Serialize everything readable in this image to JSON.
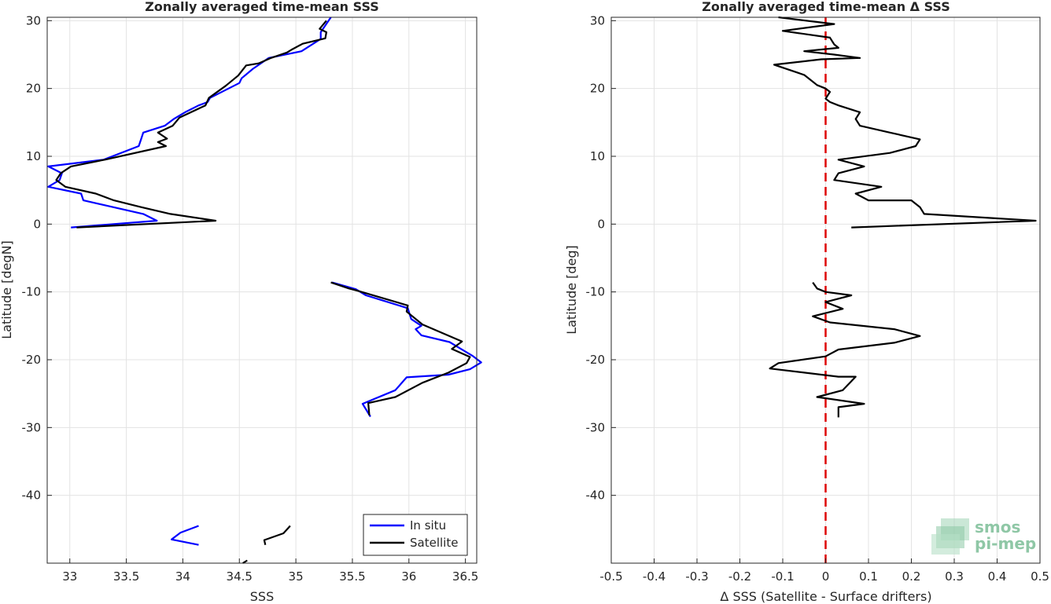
{
  "chart_data": [
    {
      "type": "line",
      "title": "Zonally averaged time-mean SSS",
      "xlabel": "SSS",
      "ylabel": "Latitude [degN]",
      "xlim": [
        32.8,
        36.6
      ],
      "ylim": [
        -50,
        30.5
      ],
      "xticks": [
        33,
        33.5,
        34,
        34.5,
        35,
        35.5,
        36,
        36.5
      ],
      "xtick_labels": [
        "33",
        "33.5",
        "34",
        "34.5",
        "35",
        "35.5",
        "36",
        "36.5"
      ],
      "yticks": [
        -40,
        -30,
        -20,
        -10,
        0,
        10,
        20,
        30
      ],
      "ytick_labels": [
        "-40",
        "-30",
        "-20",
        "-10",
        "0",
        "10",
        "20",
        "30"
      ],
      "grid": true,
      "legend": {
        "position": "bottom-right",
        "entries": [
          "In situ",
          "Satellite"
        ]
      },
      "series": [
        {
          "name": "In situ",
          "color": "#0000ff",
          "segments": [
            [
              [
                35.31,
                30.5
              ],
              [
                35.22,
                28.3
              ],
              [
                35.22,
                27.3
              ],
              [
                35.05,
                25.5
              ],
              [
                34.76,
                24.5
              ],
              [
                34.62,
                22.9
              ],
              [
                34.52,
                21.5
              ],
              [
                34.5,
                20.8
              ],
              [
                34.24,
                18.6
              ],
              [
                34.22,
                18.0
              ],
              [
                34.14,
                17.5
              ],
              [
                34.02,
                16.5
              ],
              [
                33.92,
                15.5
              ],
              [
                33.84,
                14.5
              ],
              [
                33.65,
                13.5
              ],
              [
                33.63,
                12.5
              ],
              [
                33.61,
                11.5
              ],
              [
                33.3,
                9.5
              ],
              [
                32.81,
                8.5
              ],
              [
                32.93,
                7.5
              ],
              [
                32.91,
                6.5
              ],
              [
                32.81,
                5.5
              ],
              [
                33.1,
                4.5
              ],
              [
                33.12,
                3.5
              ],
              [
                33.65,
                1.5
              ],
              [
                33.77,
                0.5
              ],
              [
                33.01,
                -0.5
              ]
            ],
            [
              [
                35.32,
                -8.6
              ],
              [
                35.53,
                -9.6
              ],
              [
                35.62,
                -10.5
              ],
              [
                35.99,
                -12.4
              ],
              [
                36.02,
                -14.0
              ],
              [
                36.11,
                -15.0
              ],
              [
                36.06,
                -15.5
              ],
              [
                36.11,
                -16.4
              ],
              [
                36.36,
                -17.4
              ],
              [
                36.45,
                -18.3
              ],
              [
                36.56,
                -19.4
              ],
              [
                36.64,
                -20.4
              ],
              [
                36.54,
                -21.4
              ],
              [
                36.35,
                -22.2
              ],
              [
                35.98,
                -22.6
              ],
              [
                35.88,
                -24.5
              ],
              [
                35.59,
                -26.5
              ],
              [
                35.66,
                -28.4
              ]
            ],
            [
              [
                34.14,
                -44.5
              ],
              [
                33.98,
                -45.5
              ],
              [
                33.9,
                -46.5
              ],
              [
                34.14,
                -47.3
              ]
            ]
          ]
        },
        {
          "name": "Satellite",
          "color": "#000000",
          "segments": [
            [
              [
                35.27,
                30.0
              ],
              [
                35.21,
                28.8
              ],
              [
                35.27,
                28.3
              ],
              [
                35.26,
                27.4
              ],
              [
                35.06,
                26.6
              ],
              [
                34.96,
                25.7
              ],
              [
                34.92,
                25.3
              ],
              [
                34.78,
                24.5
              ],
              [
                34.67,
                23.7
              ],
              [
                34.56,
                23.4
              ],
              [
                34.49,
                21.9
              ],
              [
                34.38,
                20.4
              ],
              [
                34.23,
                18.6
              ],
              [
                34.2,
                17.5
              ],
              [
                33.97,
                15.7
              ],
              [
                33.91,
                14.5
              ],
              [
                33.78,
                13.5
              ],
              [
                33.86,
                12.6
              ],
              [
                33.78,
                12.1
              ],
              [
                33.85,
                11.5
              ],
              [
                33.31,
                9.5
              ],
              [
                33.01,
                8.5
              ],
              [
                32.92,
                7.5
              ],
              [
                32.88,
                6.5
              ],
              [
                32.96,
                5.5
              ],
              [
                33.23,
                4.5
              ],
              [
                33.39,
                3.5
              ],
              [
                33.63,
                2.5
              ],
              [
                33.89,
                1.5
              ],
              [
                34.29,
                0.5
              ],
              [
                33.06,
                -0.5
              ]
            ],
            [
              [
                35.31,
                -8.6
              ],
              [
                35.47,
                -9.5
              ],
              [
                35.54,
                -9.8
              ],
              [
                35.99,
                -12.0
              ],
              [
                35.98,
                -12.9
              ],
              [
                36.12,
                -14.8
              ],
              [
                36.47,
                -17.3
              ],
              [
                36.38,
                -18.4
              ],
              [
                36.54,
                -19.6
              ],
              [
                36.51,
                -20.5
              ],
              [
                36.35,
                -21.9
              ],
              [
                36.12,
                -23.4
              ],
              [
                35.88,
                -25.5
              ],
              [
                35.64,
                -26.4
              ],
              [
                35.65,
                -28.2
              ]
            ],
            [
              [
                34.95,
                -44.5
              ],
              [
                34.89,
                -45.6
              ],
              [
                34.72,
                -46.6
              ],
              [
                34.73,
                -47.3
              ]
            ],
            [
              [
                34.57,
                -49.6
              ],
              [
                34.53,
                -50.0
              ]
            ]
          ]
        }
      ]
    },
    {
      "type": "line",
      "title": "Zonally averaged time-mean Δ SSS",
      "xlabel": "Δ SSS (Satellite - Surface drifters)",
      "ylabel": "Latitude [deg]",
      "xlim": [
        -0.5,
        0.5
      ],
      "ylim": [
        -50,
        30.5
      ],
      "xticks": [
        -0.5,
        -0.4,
        -0.3,
        -0.2,
        -0.1,
        0,
        0.1,
        0.2,
        0.3,
        0.4,
        0.5
      ],
      "xtick_labels": [
        "-0.5",
        "-0.4",
        "-0.3",
        "-0.2",
        "-0.1",
        "0",
        "0.1",
        "0.2",
        "0.3",
        "0.4",
        "0.5"
      ],
      "yticks": [
        -40,
        -30,
        -20,
        -10,
        0,
        10,
        20,
        30
      ],
      "ytick_labels": [
        "-40",
        "-30",
        "-20",
        "-10",
        "0",
        "10",
        "20",
        "30"
      ],
      "grid": true,
      "reference_line": {
        "x": 0,
        "color": "#dd0000",
        "style": "dashed"
      },
      "series": [
        {
          "color": "#000000",
          "segments": [
            [
              [
                -0.11,
                30.5
              ],
              [
                0.02,
                29.5
              ],
              [
                -0.1,
                28.5
              ],
              [
                0.01,
                27.5
              ],
              [
                0.02,
                26.5
              ],
              [
                0.03,
                26.0
              ],
              [
                -0.05,
                25.5
              ],
              [
                0.02,
                25.0
              ],
              [
                0.08,
                24.5
              ],
              [
                -0.01,
                24.3
              ],
              [
                -0.12,
                23.5
              ],
              [
                -0.05,
                22.0
              ],
              [
                -0.03,
                21.0
              ],
              [
                -0.02,
                20.5
              ],
              [
                0.0,
                20.0
              ],
              [
                0.01,
                19.5
              ],
              [
                0.0,
                18.5
              ],
              [
                0.01,
                18.0
              ],
              [
                0.03,
                17.5
              ],
              [
                0.08,
                16.5
              ],
              [
                0.07,
                15.5
              ],
              [
                0.08,
                14.5
              ],
              [
                0.15,
                13.5
              ],
              [
                0.22,
                12.5
              ],
              [
                0.21,
                11.5
              ],
              [
                0.15,
                10.5
              ],
              [
                0.03,
                9.5
              ],
              [
                0.09,
                8.5
              ],
              [
                0.03,
                7.5
              ],
              [
                0.02,
                6.5
              ],
              [
                0.13,
                5.5
              ],
              [
                0.07,
                4.5
              ],
              [
                0.1,
                3.5
              ],
              [
                0.2,
                3.5
              ],
              [
                0.22,
                2.5
              ],
              [
                0.23,
                1.5
              ],
              [
                0.49,
                0.5
              ],
              [
                0.06,
                -0.5
              ]
            ],
            [
              [
                -0.03,
                -8.6
              ],
              [
                -0.02,
                -9.5
              ],
              [
                0.0,
                -10.0
              ],
              [
                0.06,
                -10.5
              ],
              [
                0.0,
                -11.5
              ],
              [
                0.04,
                -12.5
              ],
              [
                -0.03,
                -13.6
              ],
              [
                0.01,
                -14.5
              ],
              [
                0.16,
                -15.5
              ],
              [
                0.22,
                -16.5
              ],
              [
                0.16,
                -17.5
              ],
              [
                0.03,
                -18.5
              ],
              [
                0.0,
                -19.5
              ],
              [
                -0.11,
                -20.5
              ],
              [
                -0.13,
                -21.3
              ],
              [
                0.03,
                -22.5
              ],
              [
                0.07,
                -22.5
              ],
              [
                0.04,
                -24.5
              ],
              [
                -0.02,
                -25.5
              ],
              [
                0.09,
                -26.5
              ],
              [
                0.03,
                -27.0
              ],
              [
                0.03,
                -28.5
              ]
            ]
          ]
        }
      ]
    }
  ],
  "logo": {
    "line1": "smos",
    "line2": "pi-mep"
  }
}
